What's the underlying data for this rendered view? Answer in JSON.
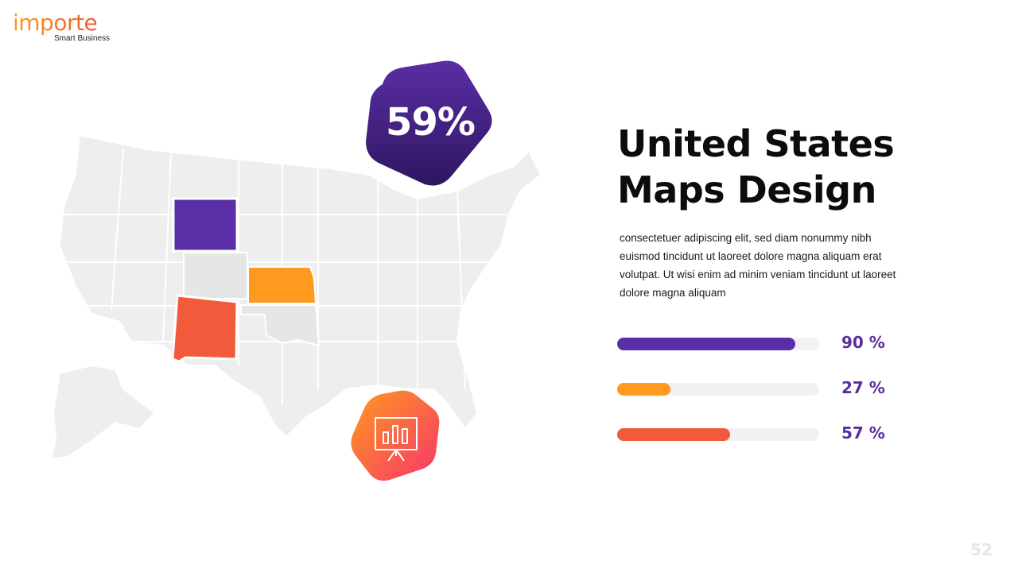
{
  "logo": {
    "name": "importe",
    "tagline": "Smart Business"
  },
  "map": {
    "base_color": "#eeeeee",
    "border_color": "#ffffff",
    "highlights": [
      {
        "name": "wyoming",
        "color": "#5a2ea6"
      },
      {
        "name": "kansas",
        "color": "#ff9a1f"
      },
      {
        "name": "new-mexico",
        "color": "#f25a3c"
      },
      {
        "name": "colorado",
        "color": "#e6e6e6"
      },
      {
        "name": "oklahoma",
        "color": "#e6e6e6"
      }
    ]
  },
  "badge": {
    "value": "59%",
    "gradient": [
      "#5a2ea6",
      "#2e1660"
    ]
  },
  "icon_badge": {
    "icon": "presentation-chart-icon",
    "gradient": [
      "#ff9a1f",
      "#f5366a"
    ]
  },
  "title": {
    "line1": "United States",
    "line2": "Maps Design"
  },
  "description": "consectetuer adipiscing elit, sed diam nonummy nibh euismod tincidunt ut laoreet dolore magna aliquam erat volutpat. Ut wisi enim ad minim veniam tincidunt ut laoreet dolore magna aliquam",
  "bars": [
    {
      "value": 0.9,
      "label": "90 %",
      "color": "#5a2ea6"
    },
    {
      "value": 0.27,
      "label": "27 %",
      "color": "#ff9a1f"
    },
    {
      "value": 0.57,
      "label": "57 %",
      "color": "#f25a3c"
    }
  ],
  "page_number": "52"
}
